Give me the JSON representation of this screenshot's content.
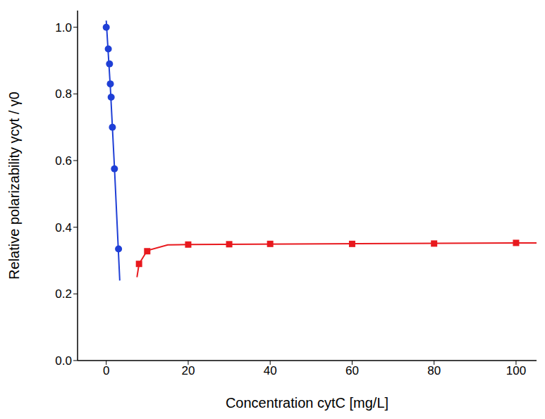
{
  "chart_data": {
    "type": "scatter",
    "xlabel": "Concentration  cytC  [mg/L]",
    "ylabel": "Relative polarizability  γcyt / γ0",
    "xlim": [
      -7,
      105
    ],
    "xticks": [
      0,
      20,
      40,
      60,
      80,
      100
    ],
    "ylim": [
      0,
      1.05
    ],
    "yticks": [
      {
        "value": 0,
        "label": "0.0"
      },
      {
        "value": 0.2,
        "label": "0.2"
      },
      {
        "value": 0.4,
        "label": "0.4"
      },
      {
        "value": 0.6,
        "label": "0.6"
      },
      {
        "value": 0.8,
        "label": "0.8"
      },
      {
        "value": 1.0,
        "label": "1.0"
      }
    ],
    "grid": false,
    "series": [
      {
        "color": "#1f3fd6",
        "marker": "circle",
        "line_style": "none",
        "x": [
          0,
          0.5,
          0.8,
          1.0,
          1.2,
          1.5,
          2.0,
          3.0
        ],
        "values": [
          1.0,
          0.935,
          0.89,
          0.83,
          0.79,
          0.7,
          0.575,
          0.335
        ]
      },
      {
        "color": "#1f3fd6",
        "marker": "none",
        "line_style": "solid",
        "x": [
          0,
          1,
          2,
          3.3
        ],
        "values": [
          1.02,
          0.82,
          0.58,
          0.24
        ]
      },
      {
        "color": "#e8191e",
        "marker": "square",
        "line_style": "none",
        "x": [
          8,
          10,
          20,
          30,
          40,
          60,
          80,
          100
        ],
        "values": [
          0.29,
          0.328,
          0.348,
          0.349,
          0.35,
          0.35,
          0.351,
          0.353
        ]
      },
      {
        "color": "#e8191e",
        "marker": "none",
        "line_style": "solid",
        "x": [
          7.5,
          8,
          10,
          15,
          20,
          100,
          105
        ],
        "values": [
          0.25,
          0.29,
          0.33,
          0.347,
          0.348,
          0.353,
          0.353
        ]
      }
    ]
  }
}
